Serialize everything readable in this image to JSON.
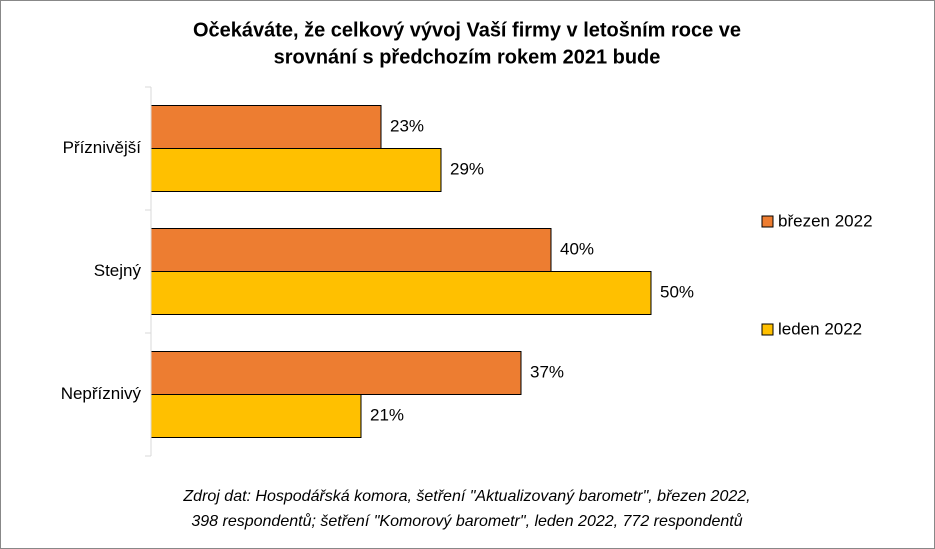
{
  "chart_data": {
    "type": "bar",
    "orientation": "horizontal",
    "title": [
      "Očekáváte, že celkový vývoj Vaší firmy v letošním roce ve",
      "srovnání s předchozím rokem 2021 bude"
    ],
    "categories": [
      "Příznivější",
      "Stejný",
      "Nepříznivý"
    ],
    "series": [
      {
        "name": "březen 2022",
        "color": "#ED7D31",
        "values": [
          23,
          40,
          37
        ],
        "value_labels": [
          "23%",
          "40%",
          "37%"
        ]
      },
      {
        "name": "leden 2022",
        "color": "#FFC000",
        "values": [
          29,
          50,
          21
        ],
        "value_labels": [
          "29%",
          "50%",
          "21%"
        ]
      }
    ],
    "xlim": [
      0,
      50
    ],
    "legend": "right",
    "source": [
      "Zdroj dat: Hospodářská komora, šetření \"Aktualizovaný barometr\", březen 2022,",
      "398 respondentů; šetření \"Komorový barometr\", leden 2022, 772 respondentů"
    ]
  }
}
